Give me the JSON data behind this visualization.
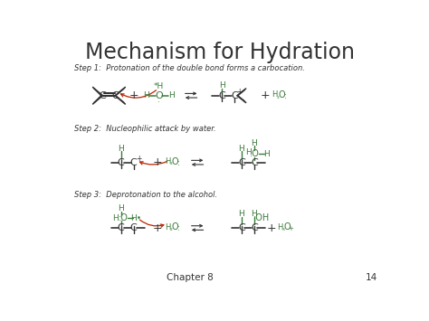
{
  "title": "Mechanism for Hydration",
  "bg_color": "#ffffff",
  "step1_label": "Step 1:  Protonation of the double bond forms a carbocation.",
  "step2_label": "Step 2:  Nucleophilic attack by water.",
  "step3_label": "Step 3:  Deprotonation to the alcohol.",
  "footer": "Chapter 8",
  "page_num": "14",
  "green_color": "#3a7a3a",
  "red_color": "#bb2200",
  "black_color": "#333333",
  "gray_color": "#666666"
}
